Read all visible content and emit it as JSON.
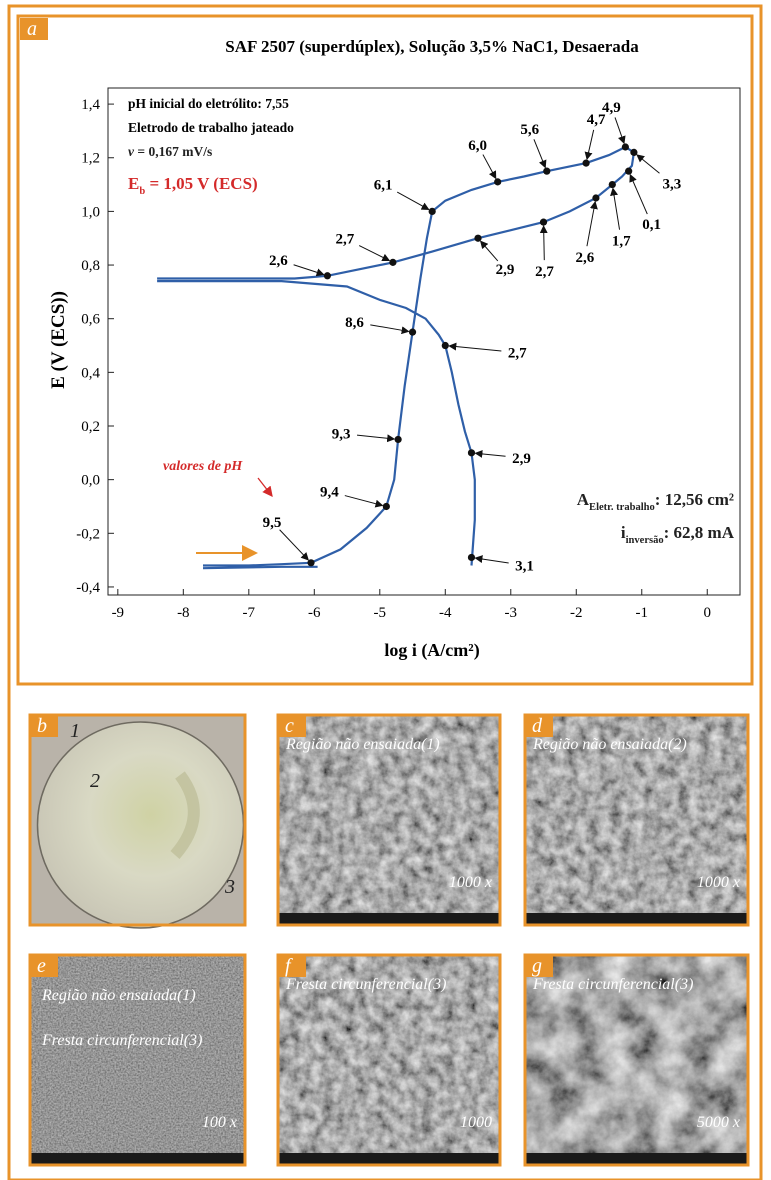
{
  "chart_data": {
    "type": "line",
    "label": "a",
    "title": "SAF 2507 (superdúplex), Solução 3,5% NaC1, Desaerada",
    "x_label": "log i (A/cm²)",
    "y_label": "E (V (ECS))",
    "xlim": [
      -9.15,
      0.5
    ],
    "ylim": [
      -0.43,
      1.46
    ],
    "xticks": [
      -9,
      -8,
      -7,
      -6,
      -5,
      -4,
      -3,
      -2,
      -1,
      0
    ],
    "yticks": [
      {
        "value": 1.4,
        "label": "1,4"
      },
      {
        "value": 1.2,
        "label": "1,2"
      },
      {
        "value": 1.0,
        "label": "1,0"
      },
      {
        "value": 0.8,
        "label": "0,8"
      },
      {
        "value": 0.6,
        "label": "0,6"
      },
      {
        "value": 0.4,
        "label": "0,4"
      },
      {
        "value": 0.2,
        "label": "0,2"
      },
      {
        "value": 0.0,
        "label": "0,0"
      },
      {
        "value": -0.2,
        "label": "-0,2"
      },
      {
        "value": -0.4,
        "label": "-0,4"
      }
    ],
    "grid": false,
    "series": [
      {
        "color": "#2f5fa8",
        "x": [
          -7.7,
          -7,
          -6.5,
          -6.05,
          -5.6,
          -5.2,
          -4.9,
          -4.78,
          -4.72,
          -4.62,
          -4.5,
          -4.38,
          -4.28,
          -4.2,
          -4.0,
          -3.6,
          -3.2,
          -2.8,
          -2.45,
          -1.85,
          -1.5,
          -1.25,
          -1.12,
          -1.15,
          -1.3,
          -1.45,
          -1.7,
          -2.1,
          -2.5,
          -3.0,
          -3.5,
          -4.2,
          -4.8,
          -5.4,
          -5.8,
          -6.3,
          -7.5,
          -8.4,
          null,
          -8.4,
          -6.5,
          -5.5,
          -5.0,
          -4.6,
          -4.3,
          -4.1,
          -4.0,
          -3.9,
          -3.8,
          -3.7,
          -3.6,
          -3.55,
          -3.55,
          -3.6,
          null,
          -7.7,
          -6.5,
          -5.95
        ],
        "y": [
          -0.32,
          -0.32,
          -0.315,
          -0.31,
          -0.26,
          -0.18,
          -0.1,
          0.0,
          0.15,
          0.35,
          0.55,
          0.75,
          0.9,
          1.0,
          1.04,
          1.08,
          1.11,
          1.13,
          1.15,
          1.18,
          1.21,
          1.24,
          1.22,
          1.17,
          1.13,
          1.1,
          1.05,
          1.0,
          0.96,
          0.93,
          0.9,
          0.85,
          0.81,
          0.78,
          0.76,
          0.75,
          0.75,
          0.75,
          null,
          0.74,
          0.74,
          0.72,
          0.67,
          0.64,
          0.6,
          0.54,
          0.5,
          0.4,
          0.28,
          0.18,
          0.1,
          0.0,
          -0.15,
          -0.32,
          null,
          -0.33,
          -0.325,
          -0.325
        ]
      }
    ],
    "points": [
      {
        "x": -6.05,
        "y": -0.31,
        "label": "9,5"
      },
      {
        "x": -4.9,
        "y": -0.1,
        "label": "9,4"
      },
      {
        "x": -4.72,
        "y": 0.15,
        "label": "9,3"
      },
      {
        "x": -4.5,
        "y": 0.55,
        "label": "8,6"
      },
      {
        "x": -4.2,
        "y": 1.0,
        "label": "6,1"
      },
      {
        "x": -3.2,
        "y": 1.11,
        "label": "6,0"
      },
      {
        "x": -2.45,
        "y": 1.15,
        "label": "5,6"
      },
      {
        "x": -1.85,
        "y": 1.18,
        "label": "4,7"
      },
      {
        "x": -1.25,
        "y": 1.24,
        "label": "4,9"
      },
      {
        "x": -1.12,
        "y": 1.22,
        "label": "3,3"
      },
      {
        "x": -1.2,
        "y": 1.15,
        "label": "0,1"
      },
      {
        "x": -1.45,
        "y": 1.1,
        "label": "1,7"
      },
      {
        "x": -1.7,
        "y": 1.05,
        "label": "2,6"
      },
      {
        "x": -2.5,
        "y": 0.96,
        "label": "2,7"
      },
      {
        "x": -3.5,
        "y": 0.9,
        "label": "2,9"
      },
      {
        "x": -4.8,
        "y": 0.81,
        "label": "2,7"
      },
      {
        "x": -5.8,
        "y": 0.76,
        "label": "2,6"
      },
      {
        "x": -4.0,
        "y": 0.5,
        "label": "2,7"
      },
      {
        "x": -3.6,
        "y": 0.1,
        "label": "2,9"
      },
      {
        "x": -3.6,
        "y": -0.29,
        "label": "3,1"
      }
    ],
    "info": [
      "pH inicial do eletrólito: 7,55",
      "Eletrodo de trabalho jateado"
    ],
    "rate": {
      "symbol": "v",
      "text": " = 0,167 mV/s"
    },
    "breakdown": {
      "symbol": "E",
      "subscript": "b",
      "text": " = 1,05 V (ECS)"
    },
    "ph_note": "valores de pH",
    "area": {
      "symbol": "A",
      "subscript": "Eletr. trabalho",
      "text": ": 12,56 cm²"
    },
    "current": {
      "symbol": "i",
      "subscript": "inversão",
      "text": ": 62,8 mA"
    }
  },
  "panels": [
    {
      "letter": "b",
      "texts": [
        "1",
        "2",
        "3"
      ]
    },
    {
      "letter": "c",
      "texts": [
        "Região não ensaiada(1)",
        "1000 x"
      ]
    },
    {
      "letter": "d",
      "texts": [
        "Região não ensaiada(2)",
        "1000 x"
      ]
    },
    {
      "letter": "e",
      "texts": [
        "Região não ensaiada(1)",
        "Fresta circunferencial(3)",
        "100 x"
      ]
    },
    {
      "letter": "f",
      "texts": [
        "Fresta circunferencial(3)",
        "1000"
      ]
    },
    {
      "letter": "g",
      "texts": [
        "Fresta circunferencial(3)",
        "5000 x"
      ]
    }
  ]
}
